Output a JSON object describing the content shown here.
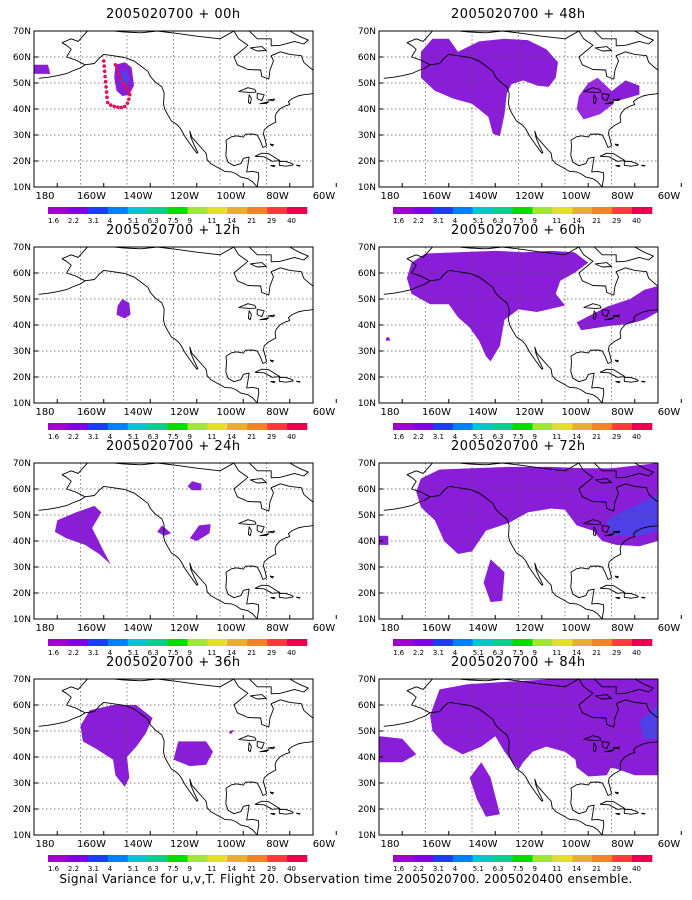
{
  "figure": {
    "caption": "Signal Variance for u,v,T. Flight 20. Observation time 2005020700. 2005020400 ensemble."
  },
  "axes": {
    "lat_labels": [
      "10N",
      "20N",
      "30N",
      "40N",
      "50N",
      "60N",
      "70N"
    ],
    "lon_labels": [
      "180",
      "160W",
      "140W",
      "120W",
      "100W",
      "80W",
      "60W"
    ]
  },
  "colorbar": {
    "labels": [
      "1.6",
      "2.2",
      "3.1",
      "4",
      "5.1",
      "6.3",
      "7.5",
      "9",
      "11",
      "14",
      "21",
      "29",
      "40"
    ],
    "colors": [
      "#a000c8",
      "#8200dc",
      "#1e3cff",
      "#0080ff",
      "#00c8c8",
      "#00d28c",
      "#00dc00",
      "#a0e632",
      "#e6dc32",
      "#e6af2d",
      "#f08228",
      "#fa3c3c",
      "#e60050"
    ]
  },
  "panels": [
    {
      "id": "00h",
      "title": "2005020700 + 00h"
    },
    {
      "id": "48h",
      "title": "2005020700 + 48h"
    },
    {
      "id": "12h",
      "title": "2005020700 + 12h"
    },
    {
      "id": "60h",
      "title": "2005020700 + 60h"
    },
    {
      "id": "24h",
      "title": "2005020700 + 24h"
    },
    {
      "id": "72h",
      "title": "2005020700 + 72h"
    },
    {
      "id": "36h",
      "title": "2005020700 + 36h"
    },
    {
      "id": "84h",
      "title": "2005020700 + 84h"
    }
  ],
  "map_style": {
    "fill_main": "#8a1ed8",
    "fill_light": "#9a28e0",
    "fill_blue": "#5040e8",
    "flight_track": "#e0105a"
  }
}
